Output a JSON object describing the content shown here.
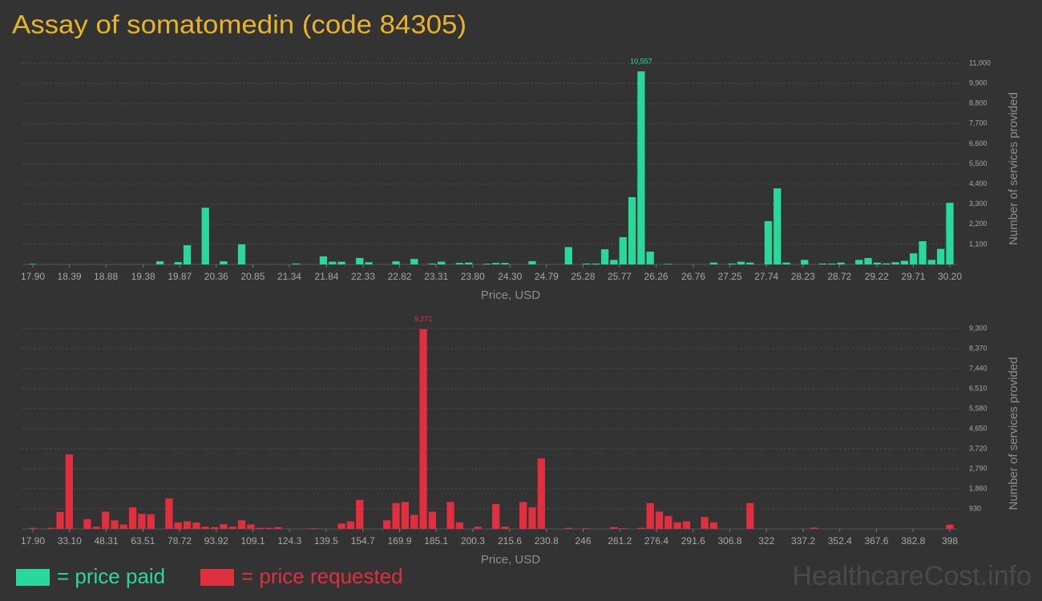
{
  "title": "Assay of somatomedin (code 84305)",
  "watermark": "HealthcareCost.info",
  "chart_data": [
    {
      "type": "bar",
      "xlabel": "Price, USD",
      "ylabel": "Number of services provided",
      "grid": true,
      "xlim": [
        17.9,
        30.2
      ],
      "xticks": [
        {
          "value": 17.9,
          "label": "17.90"
        },
        18.39,
        18.88,
        19.38,
        19.87,
        20.36,
        20.85,
        21.34,
        21.84,
        22.33,
        22.82,
        23.31,
        {
          "value": 23.8,
          "label": "23.80"
        },
        {
          "value": 24.3,
          "label": "24.30"
        },
        24.79,
        25.28,
        25.77,
        26.26,
        26.76,
        27.25,
        27.74,
        28.23,
        28.72,
        29.22,
        29.71,
        {
          "value": 30.2,
          "label": "30.20"
        }
      ],
      "ylim": [
        0,
        11000
      ],
      "yticks": [
        {
          "value": 1100,
          "label": "1,100"
        },
        {
          "value": 2200,
          "label": "2,200"
        },
        {
          "value": 3300,
          "label": "3,300"
        },
        {
          "value": 4400,
          "label": "4,400"
        },
        {
          "value": 5500,
          "label": "5,500"
        },
        {
          "value": 6600,
          "label": "6,600"
        },
        {
          "value": 7700,
          "label": "7,700"
        },
        {
          "value": 8800,
          "label": "8,800"
        },
        {
          "value": 9900,
          "label": "9,900"
        },
        {
          "value": 11000,
          "label": "11,000"
        }
      ],
      "series": [
        {
          "name": "= price paid",
          "color": "#2bd89c",
          "values": [
            30,
            0,
            0,
            0,
            0,
            0,
            0,
            0,
            0,
            0,
            0,
            0,
            0,
            0,
            170,
            0,
            130,
            1050,
            0,
            3100,
            0,
            170,
            0,
            1100,
            0,
            0,
            0,
            0,
            0,
            50,
            0,
            0,
            440,
            150,
            150,
            0,
            350,
            120,
            0,
            0,
            170,
            0,
            300,
            0,
            50,
            150,
            0,
            80,
            100,
            0,
            40,
            80,
            80,
            0,
            0,
            180,
            0,
            0,
            0,
            950,
            0,
            50,
            50,
            830,
            250,
            1490,
            3680,
            10557,
            700,
            0,
            30,
            0,
            0,
            0,
            0,
            100,
            0,
            50,
            150,
            100,
            0,
            2370,
            4160,
            100,
            0,
            250,
            0,
            50,
            50,
            100,
            0,
            250,
            350,
            100,
            60,
            120,
            200,
            610,
            1270,
            250,
            850,
            3370
          ],
          "value_labels": [
            null,
            null,
            null,
            null,
            null,
            null,
            null,
            null,
            null,
            null,
            null,
            null,
            null,
            null,
            null,
            null,
            null,
            null,
            null,
            null,
            null,
            null,
            null,
            null,
            null,
            null,
            null,
            null,
            null,
            null,
            null,
            null,
            null,
            null,
            null,
            null,
            null,
            null,
            null,
            null,
            null,
            null,
            null,
            null,
            null,
            null,
            null,
            null,
            null,
            null,
            null,
            null,
            null,
            null,
            null,
            null,
            null,
            null,
            null,
            null,
            null,
            null,
            null,
            null,
            null,
            null,
            null,
            "10,557",
            null,
            null,
            null,
            null,
            null,
            null,
            null,
            null,
            null,
            null,
            null,
            null,
            null,
            null,
            null,
            null,
            null,
            null,
            null,
            null,
            null,
            null,
            null,
            null,
            null,
            null,
            null,
            null,
            null,
            null,
            null,
            null,
            null,
            null
          ]
        }
      ]
    },
    {
      "type": "bar",
      "xlabel": "Price, USD",
      "ylabel": "Number of services provided",
      "grid": true,
      "xlim": [
        17.9,
        398
      ],
      "xticks": [
        {
          "value": 17.9,
          "label": "17.90"
        },
        {
          "value": 33.1,
          "label": "33.10"
        },
        48.31,
        63.51,
        78.72,
        93.92,
        109.1,
        124.3,
        139.5,
        154.7,
        169.9,
        185.1,
        200.3,
        215.6,
        230.8,
        246,
        261.2,
        276.4,
        291.6,
        306.8,
        322,
        337.2,
        352.4,
        367.6,
        382.8,
        398
      ],
      "ylim": [
        0,
        9300
      ],
      "yticks": [
        930,
        {
          "value": 1860,
          "label": "1,860"
        },
        {
          "value": 2790,
          "label": "2,790"
        },
        {
          "value": 3720,
          "label": "3,720"
        },
        {
          "value": 4650,
          "label": "4,650"
        },
        {
          "value": 5580,
          "label": "5,580"
        },
        {
          "value": 6510,
          "label": "6,510"
        },
        {
          "value": 7440,
          "label": "7,440"
        },
        {
          "value": 8370,
          "label": "8,370"
        },
        {
          "value": 9300,
          "label": "9,300"
        }
      ],
      "series": [
        {
          "name": "= price requested",
          "color": "#e0303f",
          "values": [
            50,
            0,
            50,
            780,
            3460,
            0,
            450,
            100,
            800,
            400,
            200,
            1000,
            700,
            680,
            0,
            1410,
            300,
            350,
            300,
            100,
            80,
            220,
            100,
            400,
            200,
            50,
            50,
            80,
            0,
            0,
            0,
            30,
            0,
            0,
            250,
            350,
            1350,
            0,
            0,
            400,
            1200,
            1250,
            650,
            9271,
            800,
            0,
            1250,
            300,
            0,
            100,
            0,
            1150,
            100,
            0,
            1250,
            1000,
            3270,
            0,
            0,
            50,
            0,
            30,
            0,
            0,
            80,
            30,
            0,
            50,
            1200,
            800,
            600,
            300,
            350,
            0,
            550,
            300,
            0,
            0,
            0,
            1200,
            0,
            0,
            0,
            0,
            0,
            0,
            60,
            0,
            0,
            0,
            0,
            0,
            0,
            0,
            0,
            0,
            0,
            0,
            0,
            0,
            0,
            200
          ],
          "value_labels": [
            null,
            null,
            null,
            null,
            null,
            null,
            null,
            null,
            null,
            null,
            null,
            null,
            null,
            null,
            null,
            null,
            null,
            null,
            null,
            null,
            null,
            null,
            null,
            null,
            null,
            null,
            null,
            null,
            null,
            null,
            null,
            null,
            null,
            null,
            null,
            null,
            null,
            null,
            null,
            null,
            null,
            null,
            null,
            "9,271",
            null,
            null,
            null,
            null,
            null,
            null,
            null,
            null,
            null,
            null,
            null,
            null,
            null,
            null,
            null,
            null,
            null,
            null,
            null,
            null,
            null,
            null,
            null,
            null,
            null,
            null,
            null,
            null,
            null,
            null,
            null,
            null,
            null,
            null,
            null,
            null,
            null,
            null,
            null,
            null,
            null,
            null,
            null,
            null,
            null,
            null,
            null,
            null,
            null,
            null,
            null,
            null,
            null,
            null,
            null,
            null,
            null,
            null
          ]
        }
      ]
    }
  ]
}
